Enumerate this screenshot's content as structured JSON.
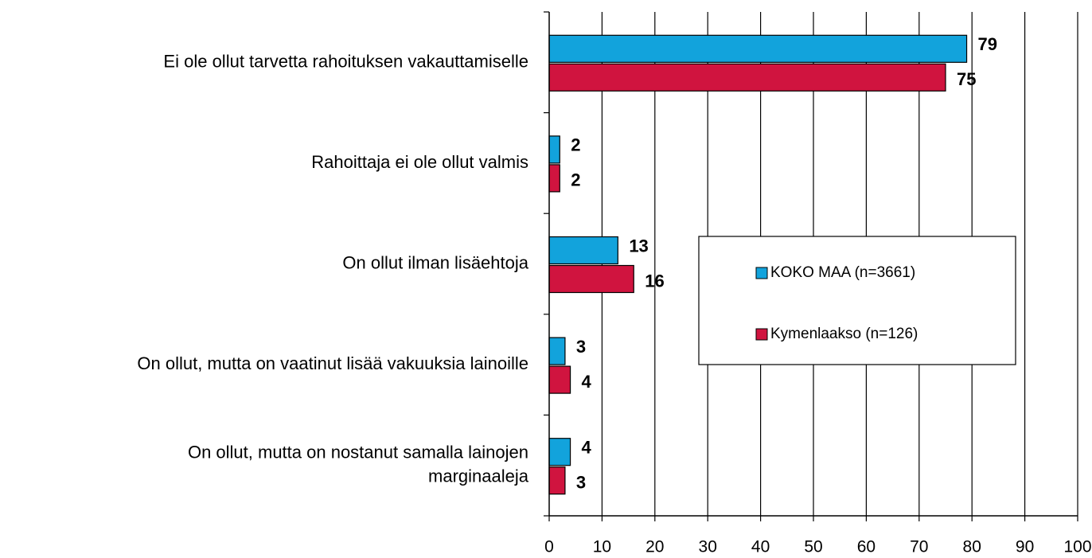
{
  "chart_data": {
    "type": "hbar",
    "categories": [
      "Ei ole ollut tarvetta rahoituksen vakauttamiselle",
      "Rahoittaja ei ole ollut valmis",
      "On ollut ilman lisäehtoja",
      "On ollut, mutta on vaatinut lisää vakuuksia lainoille",
      "On ollut, mutta on nostanut samalla lainojen\nmarginaaleja"
    ],
    "series": [
      {
        "name": "KOKO MAA (n=3661)",
        "color": "#12a3dc",
        "values": [
          79,
          2,
          13,
          3,
          4
        ]
      },
      {
        "name": "Kymenlaakso (n=126)",
        "color": "#d0143f",
        "values": [
          75,
          2,
          16,
          4,
          3
        ]
      }
    ],
    "xlim": [
      0,
      100
    ],
    "xticks": [
      0,
      10,
      20,
      30,
      40,
      50,
      60,
      70,
      80,
      90,
      100
    ],
    "grid": true,
    "legend": "center right"
  }
}
